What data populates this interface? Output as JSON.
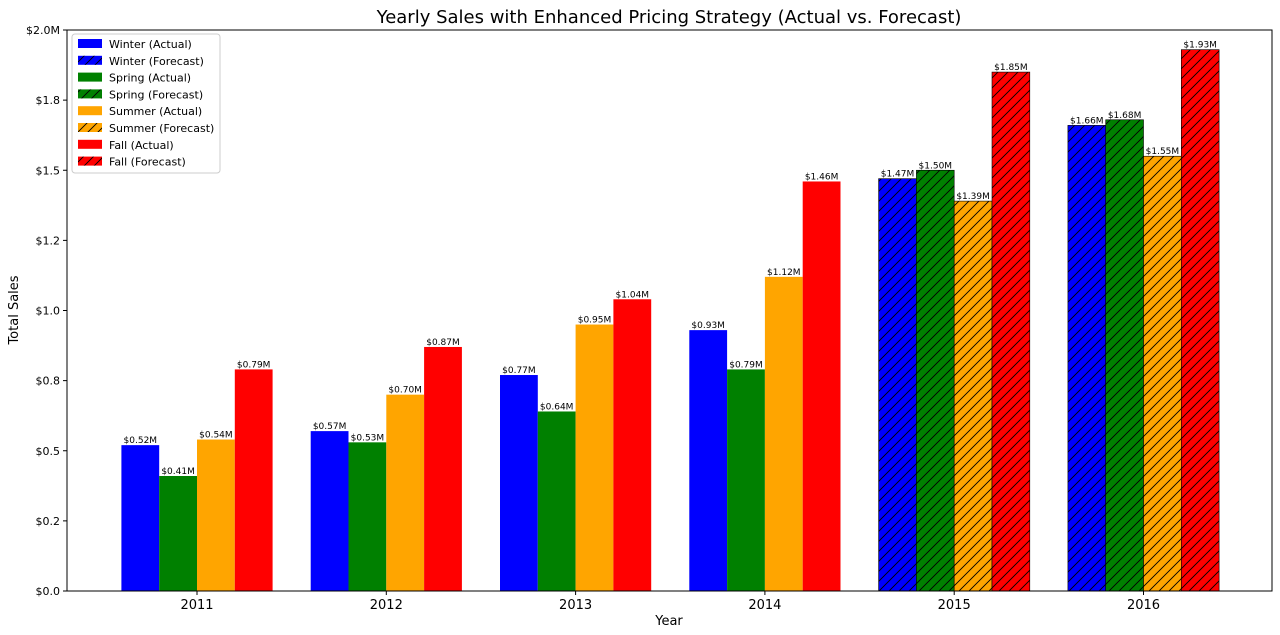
{
  "chart_data": {
    "type": "bar",
    "title": "Yearly Sales with Enhanced Pricing Strategy (Actual vs. Forecast)",
    "xlabel": "Year",
    "ylabel": "Total Sales",
    "categories": [
      "2011",
      "2012",
      "2013",
      "2014",
      "2015",
      "2016"
    ],
    "forecast_from_index": 4,
    "ylim": [
      0,
      2.0
    ],
    "yticks": [
      0.0,
      0.25,
      0.5,
      0.75,
      1.0,
      1.25,
      1.5,
      1.75,
      2.0
    ],
    "ytick_labels": [
      "$0.0",
      "$0.2",
      "$0.5",
      "$0.8",
      "$1.0",
      "$1.2",
      "$1.5",
      "$1.8",
      "$2.0M"
    ],
    "grid": false,
    "legend_position": "top-left",
    "legend": [
      "Winter (Actual)",
      "Winter (Forecast)",
      "Spring (Actual)",
      "Spring (Forecast)",
      "Summer (Actual)",
      "Summer (Forecast)",
      "Fall (Actual)",
      "Fall (Forecast)"
    ],
    "series": [
      {
        "season": "Winter",
        "color": "#0000ff",
        "values": [
          0.52,
          0.57,
          0.77,
          0.93,
          1.47,
          1.66
        ],
        "labels": [
          "$0.52M",
          "$0.57M",
          "$0.77M",
          "$0.93M",
          "$1.47M",
          "$1.66M"
        ]
      },
      {
        "season": "Spring",
        "color": "#008000",
        "values": [
          0.41,
          0.53,
          0.64,
          0.79,
          1.5,
          1.68
        ],
        "labels": [
          "$0.41M",
          "$0.53M",
          "$0.64M",
          "$0.79M",
          "$1.50M",
          "$1.68M"
        ]
      },
      {
        "season": "Summer",
        "color": "#ffa500",
        "values": [
          0.54,
          0.7,
          0.95,
          1.12,
          1.39,
          1.55
        ],
        "labels": [
          "$0.54M",
          "$0.70M",
          "$0.95M",
          "$1.12M",
          "$1.39M",
          "$1.55M"
        ]
      },
      {
        "season": "Fall",
        "color": "#ff0000",
        "values": [
          0.79,
          0.87,
          1.04,
          1.46,
          1.85,
          1.93
        ],
        "labels": [
          "$0.79M",
          "$0.87M",
          "$1.04M",
          "$1.46M",
          "$1.85M",
          "$1.93M"
        ]
      }
    ]
  }
}
